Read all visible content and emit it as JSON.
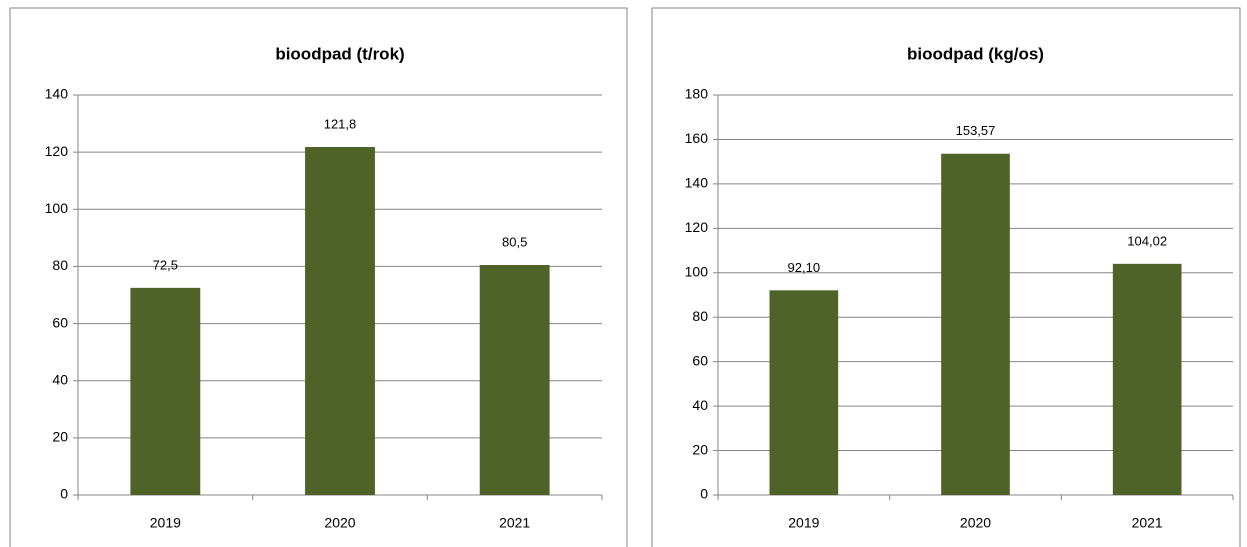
{
  "chart_data": [
    {
      "type": "bar",
      "title": "bioodpad (t/rok)",
      "categories": [
        "2019",
        "2020",
        "2021"
      ],
      "values": [
        72.5,
        121.8,
        80.5
      ],
      "value_labels": [
        "72,5",
        "121,8",
        "80,5"
      ],
      "color": "#4f6228",
      "ylim": [
        0,
        140
      ],
      "yticks": [
        0,
        20,
        40,
        60,
        80,
        100,
        120,
        140
      ],
      "grid": true
    },
    {
      "type": "bar",
      "title": "bioodpad (kg/os)",
      "categories": [
        "2019",
        "2020",
        "2021"
      ],
      "values": [
        92.1,
        153.57,
        104.02
      ],
      "value_labels": [
        "92,10",
        "153,57",
        "104,02"
      ],
      "color": "#4f6228",
      "ylim": [
        0,
        180
      ],
      "yticks": [
        0,
        20,
        40,
        60,
        80,
        100,
        120,
        140,
        160,
        180
      ],
      "grid": true
    }
  ]
}
